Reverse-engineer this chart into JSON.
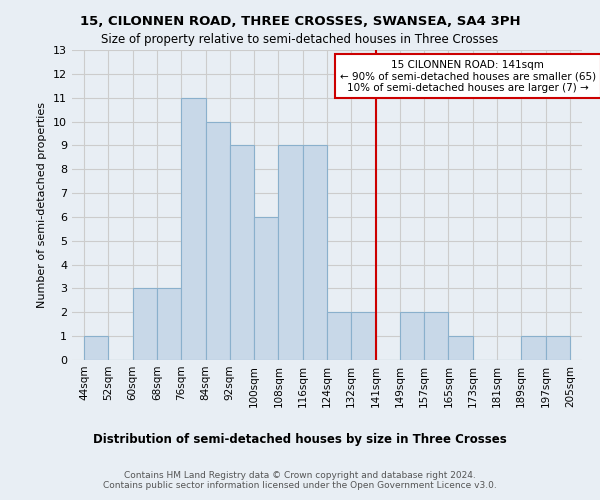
{
  "title": "15, CILONNEN ROAD, THREE CROSSES, SWANSEA, SA4 3PH",
  "subtitle": "Size of property relative to semi-detached houses in Three Crosses",
  "xlabel_bottom": "Distribution of semi-detached houses by size in Three Crosses",
  "ylabel": "Number of semi-detached properties",
  "footer": "Contains HM Land Registry data © Crown copyright and database right 2024.\nContains public sector information licensed under the Open Government Licence v3.0.",
  "categories": [
    "44sqm",
    "52sqm",
    "60sqm",
    "68sqm",
    "76sqm",
    "84sqm",
    "92sqm",
    "100sqm",
    "108sqm",
    "116sqm",
    "124sqm",
    "132sqm",
    "141sqm",
    "149sqm",
    "157sqm",
    "165sqm",
    "173sqm",
    "181sqm",
    "189sqm",
    "197sqm",
    "205sqm"
  ],
  "bar_values": [
    1,
    0,
    3,
    3,
    11,
    10,
    9,
    6,
    9,
    9,
    2,
    2,
    0,
    2,
    2,
    1,
    0,
    0,
    1,
    1
  ],
  "bar_color": "#c8d8e8",
  "bar_edge_color": "#8ab0cc",
  "marker_index": 12,
  "marker_color": "#cc0000",
  "ylim": [
    0,
    13
  ],
  "yticks": [
    0,
    1,
    2,
    3,
    4,
    5,
    6,
    7,
    8,
    9,
    10,
    11,
    12,
    13
  ],
  "grid_color": "#cccccc",
  "background_color": "#e8eef4",
  "annotation_text": "15 CILONNEN ROAD: 141sqm\n← 90% of semi-detached houses are smaller (65)\n10% of semi-detached houses are larger (7) →",
  "annotation_box_color": "#ffffff",
  "annotation_border_color": "#cc0000"
}
